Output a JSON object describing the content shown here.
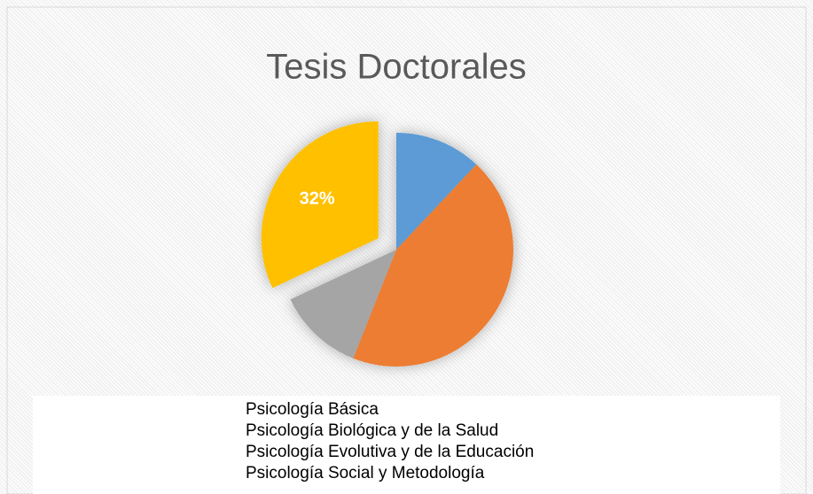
{
  "chart_data": {
    "type": "pie",
    "title": "Tesis Doctorales",
    "categories": [
      "Psicología Básica",
      "Psicología Biológica y de la Salud",
      "Psicología Evolutiva y de la Educación",
      "Psicología Social y Metodología"
    ],
    "values": [
      12,
      44,
      12,
      32
    ],
    "value_labels": [
      null,
      null,
      null,
      "32%"
    ],
    "colors": [
      "#5b9bd5",
      "#ed7d31",
      "#a5a5a5",
      "#ffc000"
    ],
    "legend": "bottom"
  }
}
